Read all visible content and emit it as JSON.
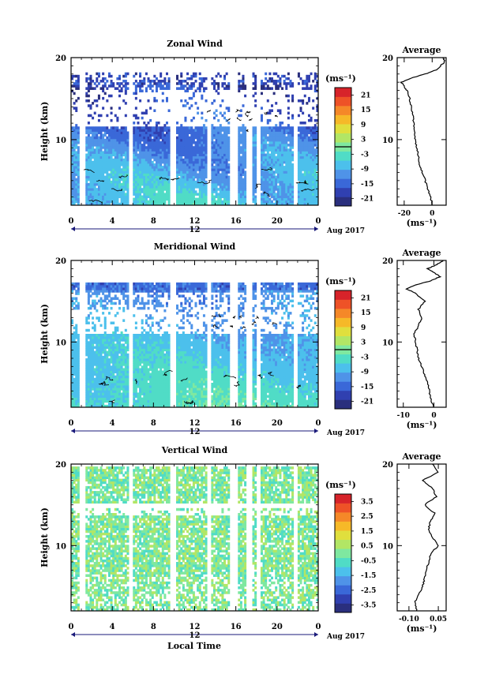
{
  "chart_data": [
    {
      "type": "heatmap",
      "title": "Zonal Wind",
      "ylabel": "Height (km)",
      "x_tick_labels": [
        "0",
        "4",
        "8",
        "12",
        "16",
        "20",
        "0"
      ],
      "y_tick_labels": [
        "10",
        "20"
      ],
      "ylim": [
        2,
        20
      ],
      "xlim": [
        0,
        24
      ],
      "date_label": "12",
      "month_label": "Aug 2017",
      "unit_label": "(ms⁻¹)",
      "colorbar_ticks": [
        "21",
        "15",
        "9",
        "3",
        "-3",
        "-9",
        "-15",
        "-21"
      ],
      "colorbar_range": [
        -24,
        24
      ],
      "data_gaps_hours": [
        [
          0.9,
          1.4
        ],
        [
          5.6,
          6.0
        ],
        [
          9.6,
          10.1
        ],
        [
          13.1,
          13.6
        ],
        [
          15.4,
          16.1
        ],
        [
          17.0,
          17.6
        ],
        [
          18.0,
          18.4
        ],
        [
          21.6,
          22.0
        ]
      ],
      "profile": {
        "title": "Average",
        "x_tick_labels": [
          "-20",
          "0"
        ],
        "xlim": [
          -25,
          10
        ],
        "unit_label": "(ms⁻¹)",
        "y_tick_labels": [
          "10",
          "20"
        ],
        "height_km": [
          2,
          3,
          4,
          5,
          6,
          7,
          8,
          9,
          10,
          11,
          12,
          13,
          14,
          15,
          16,
          16.5,
          17,
          17.5,
          18,
          18.5,
          19,
          19.5,
          20
        ],
        "values": [
          0,
          -1,
          -3,
          -5,
          -7,
          -9,
          -10,
          -11,
          -12,
          -13,
          -13,
          -14,
          -15,
          -16,
          -18,
          -20,
          -22,
          -15,
          -5,
          3,
          6,
          9,
          8
        ]
      }
    },
    {
      "type": "heatmap",
      "title": "Meridional Wind",
      "ylabel": "Height (km)",
      "x_tick_labels": [
        "0",
        "4",
        "8",
        "12",
        "16",
        "20",
        "0"
      ],
      "y_tick_labels": [
        "10",
        "20"
      ],
      "ylim": [
        2,
        20
      ],
      "xlim": [
        0,
        24
      ],
      "date_label": "12",
      "month_label": "Aug 2017",
      "unit_label": "(ms⁻¹)",
      "colorbar_ticks": [
        "21",
        "15",
        "9",
        "3",
        "-3",
        "-9",
        "-15",
        "-21"
      ],
      "colorbar_range": [
        -24,
        24
      ],
      "data_gaps_hours": [
        [
          0.9,
          1.4
        ],
        [
          5.6,
          6.0
        ],
        [
          9.6,
          10.1
        ],
        [
          13.1,
          13.6
        ],
        [
          15.4,
          16.1
        ],
        [
          17.0,
          17.6
        ],
        [
          18.0,
          18.4
        ],
        [
          21.6,
          22.0
        ]
      ],
      "profile": {
        "title": "Average",
        "x_tick_labels": [
          "-10",
          "0"
        ],
        "xlim": [
          -12,
          4
        ],
        "unit_label": "(ms⁻¹)",
        "y_tick_labels": [
          "10",
          "20"
        ],
        "height_km": [
          2,
          3,
          4,
          5,
          6,
          7,
          8,
          9,
          10,
          11,
          12,
          13,
          14,
          15,
          16,
          16.5,
          17,
          17.5,
          18,
          18.5,
          19,
          19.5,
          20
        ],
        "values": [
          0,
          -1,
          -1.5,
          -2,
          -3,
          -4,
          -5,
          -5.5,
          -6,
          -6.5,
          -5,
          -4,
          -5,
          -3,
          -6,
          -9,
          -6,
          -1,
          2,
          0,
          -2,
          1,
          3
        ]
      }
    },
    {
      "type": "heatmap",
      "title": "Vertical Wind",
      "ylabel": "Height (km)",
      "xlabel": "Local Time",
      "x_tick_labels": [
        "0",
        "4",
        "8",
        "12",
        "16",
        "20",
        "0"
      ],
      "y_tick_labels": [
        "10",
        "20"
      ],
      "ylim": [
        2,
        20
      ],
      "xlim": [
        0,
        24
      ],
      "date_label": "12",
      "month_label": "Aug 2017",
      "unit_label": "(ms⁻¹)",
      "colorbar_ticks": [
        "3.5",
        "2.5",
        "1.5",
        "0.5",
        "-0.5",
        "-1.5",
        "-2.5",
        "-3.5"
      ],
      "colorbar_range": [
        -4,
        4
      ],
      "data_gaps_hours": [
        [
          0.9,
          1.4
        ],
        [
          5.6,
          6.0
        ],
        [
          9.6,
          10.1
        ],
        [
          13.1,
          13.6
        ],
        [
          15.4,
          16.1
        ],
        [
          17.0,
          17.6
        ],
        [
          18.0,
          18.4
        ],
        [
          21.6,
          22.0
        ]
      ],
      "profile": {
        "title": "Average",
        "x_tick_labels": [
          "-0.10",
          "0.05"
        ],
        "xlim": [
          -0.16,
          0.09
        ],
        "unit_label": "(ms⁻¹)",
        "y_tick_labels": [
          "10",
          "20"
        ],
        "height_km": [
          2,
          3,
          4,
          5,
          6,
          7,
          8,
          9,
          10,
          11,
          12,
          13,
          14,
          15,
          16,
          17,
          18,
          19,
          20
        ],
        "values": [
          -0.06,
          -0.07,
          -0.05,
          -0.03,
          -0.02,
          -0.01,
          0.0,
          0.01,
          0.05,
          0.02,
          0.0,
          0.01,
          0.03,
          -0.02,
          0.04,
          0.02,
          -0.03,
          0.05,
          0.02
        ]
      }
    }
  ],
  "colors": {
    "colorbar": [
      "#2a2f7d",
      "#3040b0",
      "#3a68d8",
      "#4f93e8",
      "#4cc0ec",
      "#50dcc6",
      "#7fe8a0",
      "#b2e665",
      "#e0df3d",
      "#f6b928",
      "#f58828",
      "#ee5227",
      "#d7232a"
    ],
    "contour": "#000000"
  }
}
